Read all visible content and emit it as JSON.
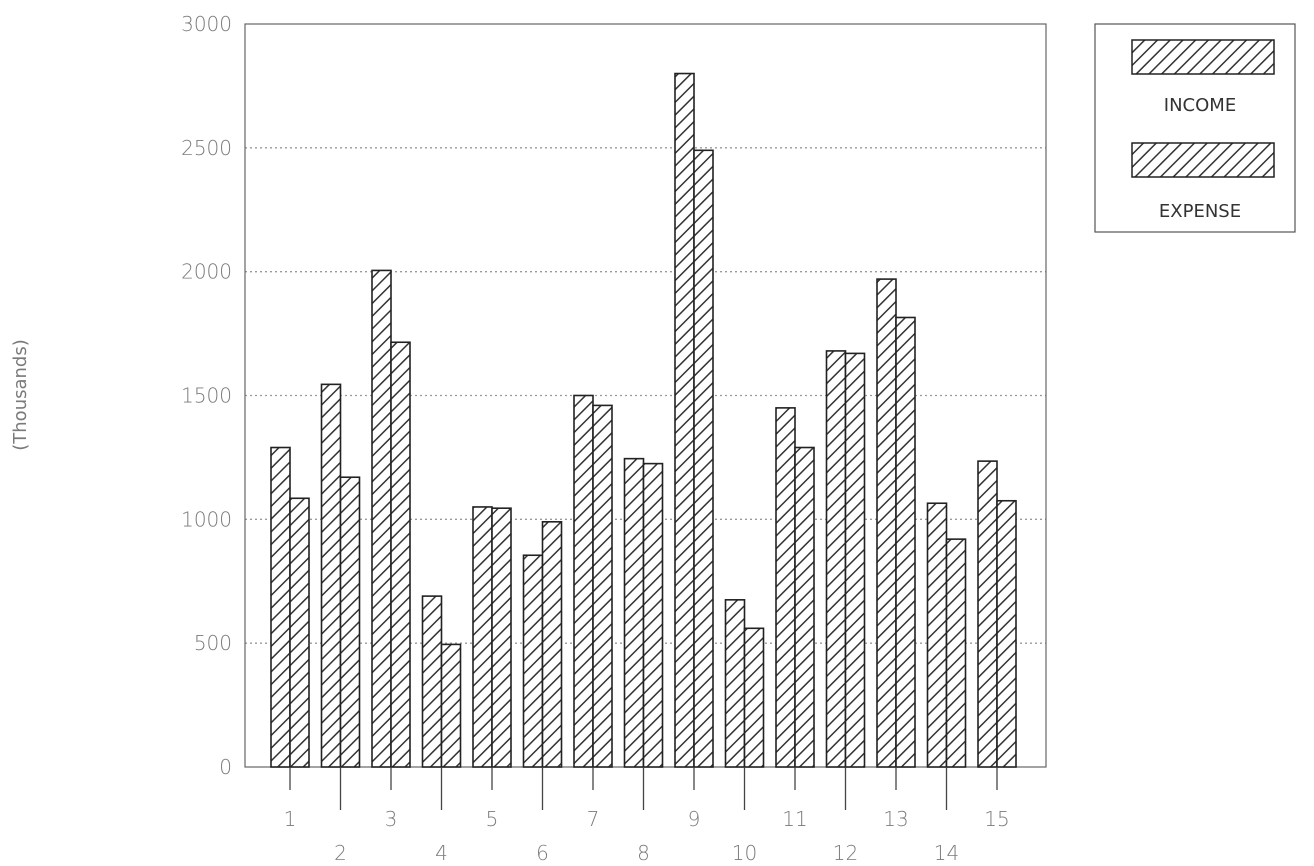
{
  "chart_data": {
    "type": "bar",
    "title": "",
    "xlabel": "",
    "ylabel": "(Thousands)",
    "categories": [
      "1",
      "2",
      "3",
      "4",
      "5",
      "6",
      "7",
      "8",
      "9",
      "10",
      "11",
      "12",
      "13",
      "14",
      "15"
    ],
    "series": [
      {
        "name": "INCOME",
        "values": [
          1290,
          1545,
          2005,
          690,
          1050,
          855,
          1500,
          1245,
          2800,
          675,
          1450,
          1680,
          1970,
          1065,
          1235
        ]
      },
      {
        "name": "EXPENSE",
        "values": [
          1085,
          1170,
          1715,
          495,
          1045,
          990,
          1460,
          1225,
          2490,
          560,
          1290,
          1670,
          1815,
          920,
          1075
        ]
      }
    ],
    "ylim": [
      0,
      3000
    ],
    "yticks": [
      0,
      500,
      1000,
      1500,
      2000,
      2500,
      3000
    ],
    "grid": "horizontal-dotted",
    "legend": "top-right",
    "colors": {
      "bar_stroke": "#222222",
      "hatch": "#333333",
      "grid": "#9a9a9a",
      "text": "#7a7a7a"
    }
  }
}
